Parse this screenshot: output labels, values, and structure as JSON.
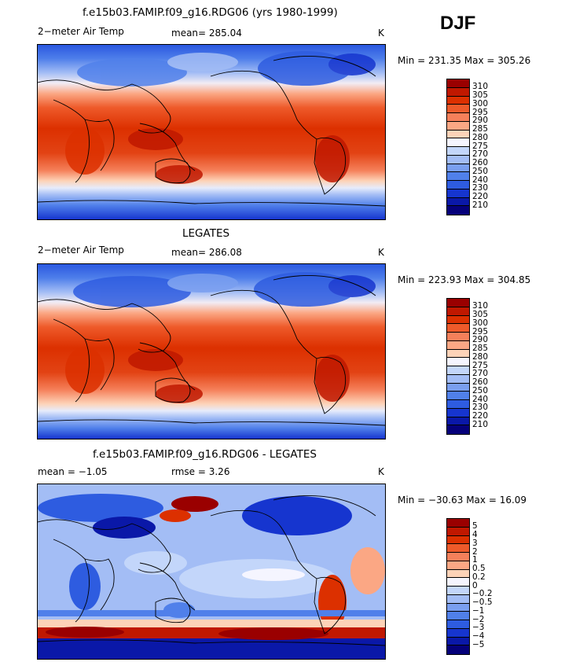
{
  "season": "DJF",
  "panels": [
    {
      "title": "f.e15b03.FAMIP.f09_g16.RDG06 (yrs 1980-1999)",
      "left_label": "2−meter Air Temp",
      "stat1": "mean=  285.04",
      "stat2": "",
      "units": "K",
      "minmax": "Min = 231.35  Max = 305.26",
      "map_style": "abs"
    },
    {
      "title": "LEGATES",
      "left_label": "2−meter Air Temp",
      "stat1": "mean=  286.08",
      "stat2": "",
      "units": "K",
      "minmax": "Min = 223.93  Max = 304.85",
      "map_style": "abs"
    },
    {
      "title": "f.e15b03.FAMIP.f09_g16.RDG06 - LEGATES",
      "left_label": "",
      "stat1": "mean =    −1.05",
      "stat2": "rmse =     3.26",
      "units": "K",
      "minmax": "Min = −30.63  Max =   16.09",
      "map_style": "diff"
    }
  ],
  "colorbars": {
    "absolute": {
      "labels": [
        "310",
        "305",
        "300",
        "295",
        "290",
        "285",
        "280",
        "275",
        "270",
        "260",
        "250",
        "240",
        "230",
        "220",
        "210"
      ],
      "colors": [
        "#9a0000",
        "#c01800",
        "#dc3000",
        "#ee5a2a",
        "#f5805a",
        "#fba784",
        "#fdd3b8",
        "#f5f5ff",
        "#c3d6fa",
        "#a3bdf5",
        "#7a9ff0",
        "#5080ea",
        "#2e5ce0",
        "#1635cf",
        "#0a18a8",
        "#05007a"
      ]
    },
    "difference": {
      "labels": [
        "5",
        "4",
        "3",
        "2",
        "1",
        "0.5",
        "0.2",
        "0",
        "−0.2",
        "−0.5",
        "−1",
        "−2",
        "−3",
        "−4",
        "−5"
      ],
      "colors": [
        "#9a0000",
        "#c01800",
        "#dc3000",
        "#ee5a2a",
        "#f5805a",
        "#fba784",
        "#fdd3b8",
        "#f5f5ff",
        "#c3d6fa",
        "#a3bdf5",
        "#7a9ff0",
        "#5080ea",
        "#2e5ce0",
        "#1635cf",
        "#0a18a8",
        "#05007a"
      ]
    }
  }
}
